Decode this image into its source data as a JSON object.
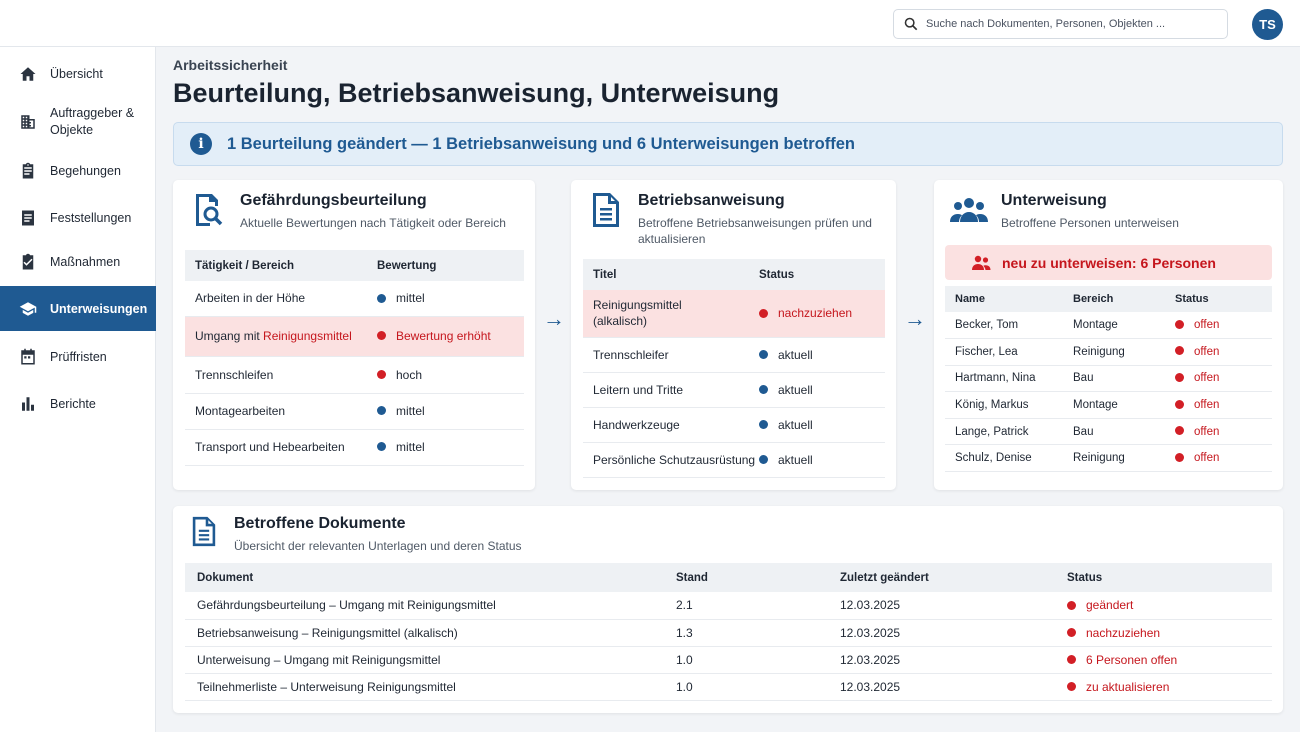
{
  "search": {
    "placeholder": "Suche nach Dokumenten, Personen, Objekten ..."
  },
  "user": {
    "initials": "TS"
  },
  "sidebar": {
    "items": [
      {
        "label": "Übersicht",
        "icon": "home-icon"
      },
      {
        "label": "Auftraggeber & Objekte",
        "icon": "building-icon"
      },
      {
        "label": "Begehungen",
        "icon": "clipboard-icon"
      },
      {
        "label": "Feststellungen",
        "icon": "document-icon"
      },
      {
        "label": "Maßnahmen",
        "icon": "task-check-icon"
      },
      {
        "label": "Unterweisungen",
        "icon": "graduation-cap-icon",
        "active": true
      },
      {
        "label": "Prüffristen",
        "icon": "calendar-icon"
      },
      {
        "label": "Berichte",
        "icon": "bar-chart-icon"
      }
    ]
  },
  "header": {
    "breadcrumb": "Arbeitssicherheit",
    "title": "Beurteilung, Betriebsanweisung, Unterweisung"
  },
  "banner": {
    "text": "1 Beurteilung geändert — 1 Betriebsanweisung und 6 Unterweisungen betroffen"
  },
  "gb": {
    "title": "Gefährdungsbeurteilung",
    "subtitle": "Aktuelle Bewertungen nach Tätigkeit oder Bereich",
    "col_activity": "Tätigkeit / Bereich",
    "col_rating": "Bewertung",
    "rows": [
      {
        "activity": "Arbeiten in der Höhe",
        "rating": "mittel",
        "color": "blue"
      },
      {
        "activity_prefix": "Umgang mit ",
        "activity_highlight": "Reinigungsmittel",
        "rating": "Bewertung erhöht",
        "color": "red",
        "highlight": true
      },
      {
        "activity": "Trennschleifen",
        "rating": "hoch",
        "color": "red"
      },
      {
        "activity": "Montagearbeiten",
        "rating": "mittel",
        "color": "blue"
      },
      {
        "activity": "Transport und Hebearbeiten",
        "rating": "mittel",
        "color": "blue"
      }
    ]
  },
  "ba": {
    "title": "Betriebsanweisung",
    "subtitle": "Betroffene Betriebsanweisungen prüfen und aktualisieren",
    "col_title": "Titel",
    "col_status": "Status",
    "rows": [
      {
        "title": "Reinigungsmittel (alkalisch)",
        "status": "nachzuziehen",
        "color": "red",
        "highlight": true
      },
      {
        "title": "Trennschleifer",
        "status": "aktuell",
        "color": "blue"
      },
      {
        "title": "Leitern und Tritte",
        "status": "aktuell",
        "color": "blue"
      },
      {
        "title": "Handwerkzeuge",
        "status": "aktuell",
        "color": "blue"
      },
      {
        "title": "Persönliche Schutzausrüstung",
        "status": "aktuell",
        "color": "blue"
      }
    ]
  },
  "uw": {
    "title": "Unterweisung",
    "subtitle": "Betroffene Personen unterweisen",
    "alert": "neu zu unterweisen: 6 Personen",
    "col_name": "Name",
    "col_area": "Bereich",
    "col_status": "Status",
    "rows": [
      {
        "name": "Becker, Tom",
        "area": "Montage",
        "status": "offen"
      },
      {
        "name": "Fischer, Lea",
        "area": "Reinigung",
        "status": "offen"
      },
      {
        "name": "Hartmann, Nina",
        "area": "Bau",
        "status": "offen"
      },
      {
        "name": "König, Markus",
        "area": "Montage",
        "status": "offen"
      },
      {
        "name": "Lange, Patrick",
        "area": "Bau",
        "status": "offen"
      },
      {
        "name": "Schulz, Denise",
        "area": "Reinigung",
        "status": "offen"
      }
    ]
  },
  "docs": {
    "title": "Betroffene Dokumente",
    "subtitle": "Übersicht der relevanten Unterlagen und deren Status",
    "col_doc": "Dokument",
    "col_version": "Stand",
    "col_changed": "Zuletzt geändert",
    "col_status": "Status",
    "rows": [
      {
        "doc": "Gefährdungsbeurteilung – Umgang mit Reinigungsmittel",
        "version": "2.1",
        "changed": "12.03.2025",
        "status": "geändert"
      },
      {
        "doc": "Betriebsanweisung – Reinigungsmittel (alkalisch)",
        "version": "1.3",
        "changed": "12.03.2025",
        "status": "nachzuziehen"
      },
      {
        "doc": "Unterweisung – Umgang mit Reinigungsmittel",
        "version": "1.0",
        "changed": "12.03.2025",
        "status": "6 Personen offen"
      },
      {
        "doc": "Teilnehmerliste – Unterweisung Reinigungsmittel",
        "version": "1.0",
        "changed": "12.03.2025",
        "status": "zu aktualisieren"
      }
    ]
  },
  "colors": {
    "primary": "#1f5a92",
    "danger": "#d21f26",
    "highlight_bg": "#fbe1e1",
    "banner_bg": "#e3eef8"
  }
}
